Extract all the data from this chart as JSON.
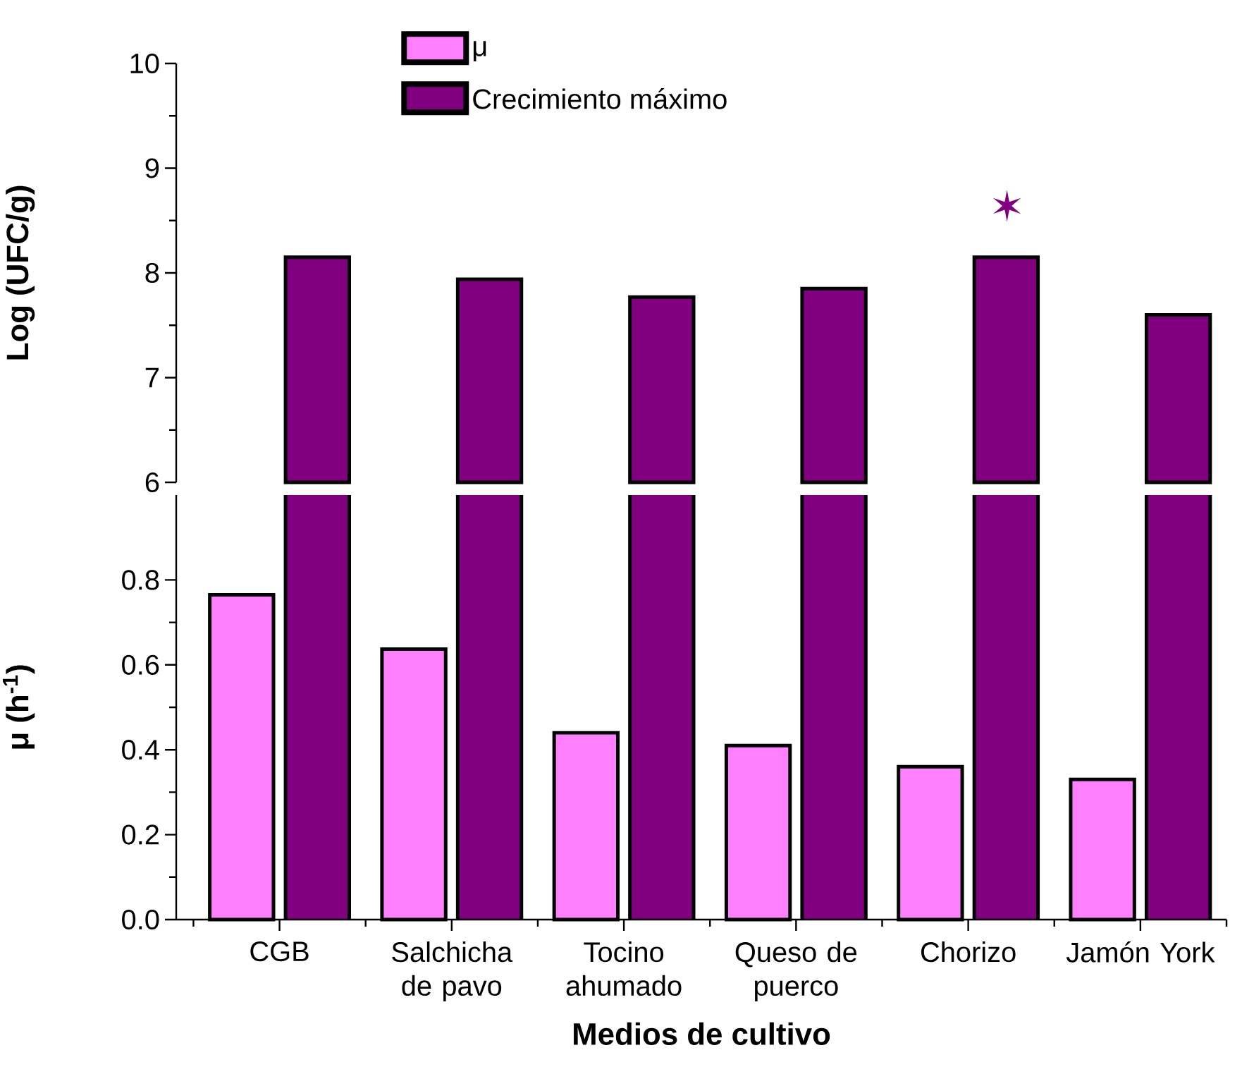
{
  "chart_data": [
    {
      "type": "bar",
      "ylabel": "Log (UFC/g)",
      "series": [
        {
          "name": "Crecimiento máximo",
          "color": "#800080",
          "values": [
            8.15,
            7.94,
            7.77,
            7.85,
            8.15,
            7.6
          ]
        }
      ],
      "ylim": [
        6,
        10
      ],
      "yticks": [
        6,
        7,
        8,
        9,
        10
      ],
      "tick_labels": "y",
      "legend": "top",
      "annotations": [
        "✶"
      ]
    },
    {
      "type": "bar",
      "xlabel": "Medios de cultivo",
      "ylabel": "μ (h$^{-1}$)",
      "categories": [
        "CGB",
        "Salchicha de pavo",
        "Tocino ahumado",
        "Queso de puerco",
        "Chorizo",
        "Jamón York"
      ],
      "series": [
        {
          "name": "μ",
          "color": "#ff80ff",
          "values": [
            0.765,
            0.637,
            0.44,
            0.41,
            0.36,
            0.33
          ]
        }
      ],
      "ylim": [
        0,
        1.0
      ],
      "yticks": [
        {
          "value": 0,
          "label": "0.0"
        },
        {
          "value": 0.2,
          "label": "0.2"
        },
        {
          "value": 0.4,
          "label": "0.4"
        },
        {
          "value": 0.6,
          "label": "0.6"
        },
        {
          "value": 0.8,
          "label": "0.8"
        }
      ],
      "legend": "top"
    }
  ]
}
